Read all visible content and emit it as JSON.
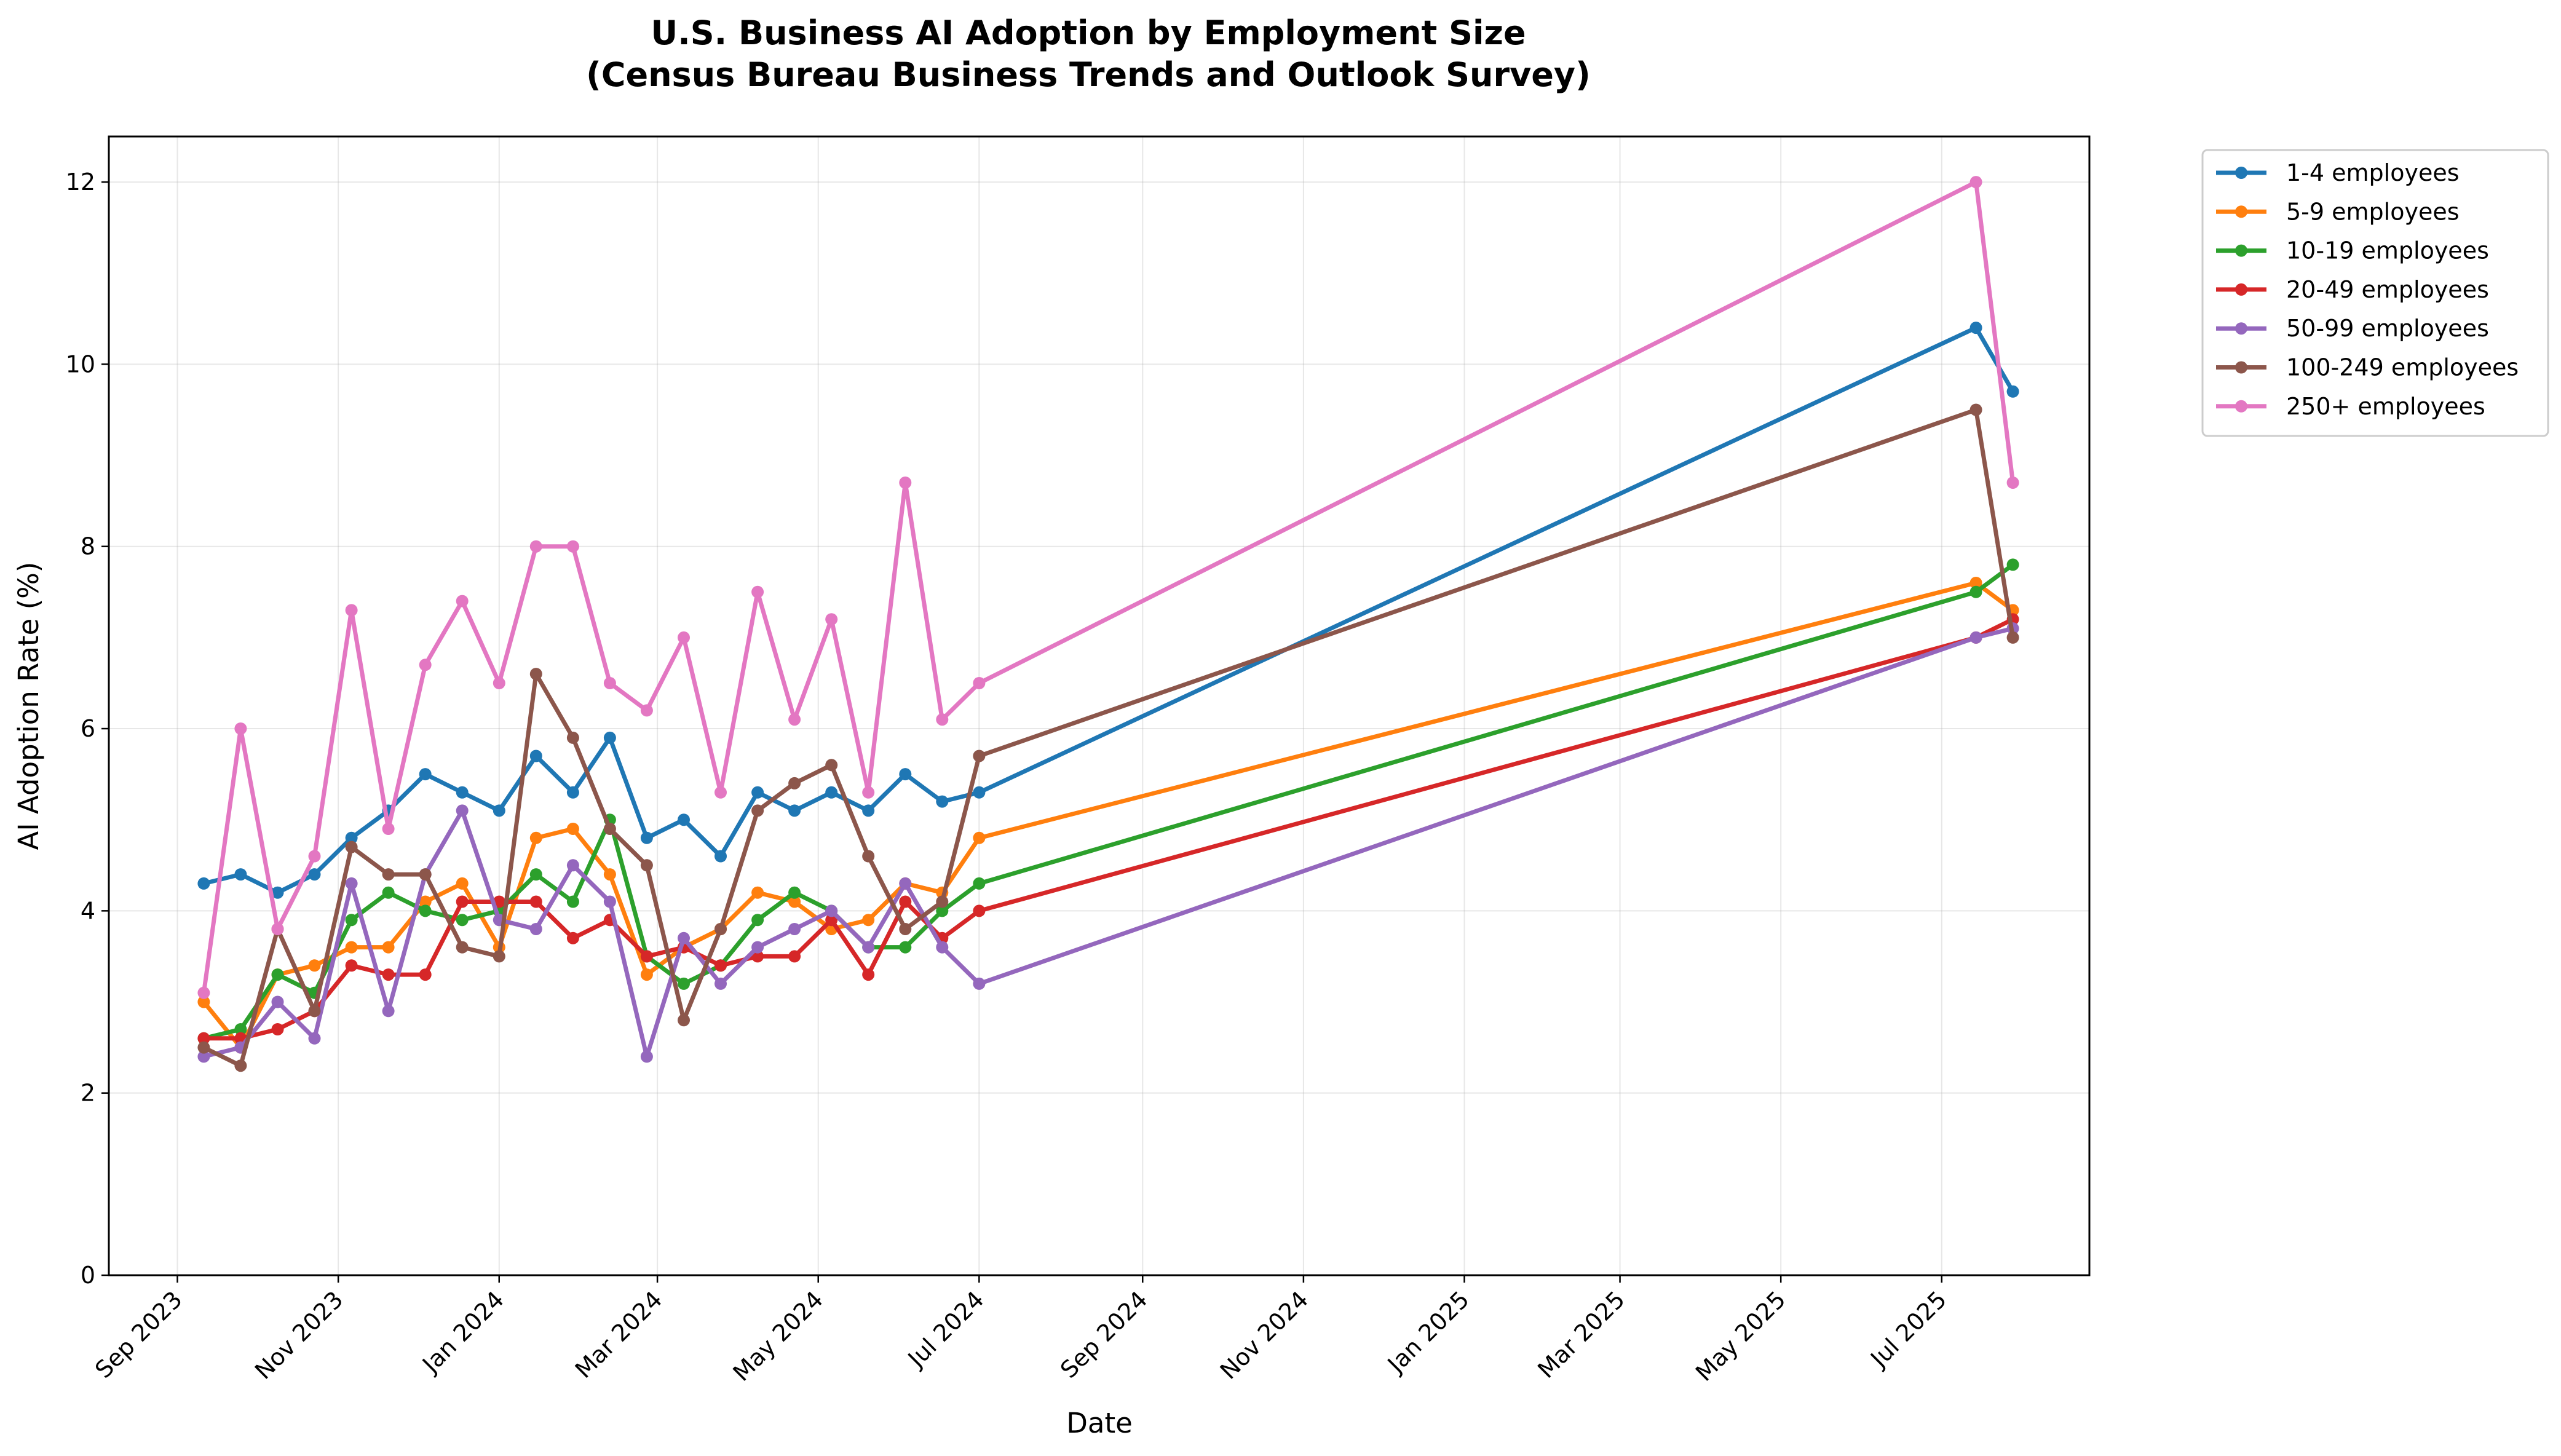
{
  "chart_data": {
    "type": "line",
    "title_line1": "U.S. Business AI Adoption by Employment Size",
    "title_line2": "(Census Bureau Business Trends and Outlook Survey)",
    "xlabel": "Date",
    "ylabel": "AI Adoption Rate (%)",
    "ylim": [
      0,
      12.5
    ],
    "yticks": [
      0,
      2,
      4,
      6,
      8,
      10,
      12
    ],
    "x_range_days": [
      -26,
      725
    ],
    "x_origin": "2023-09-01",
    "xticks": [
      {
        "label": "Sep 2023",
        "day": 0
      },
      {
        "label": "Nov 2023",
        "day": 61
      },
      {
        "label": "Jan 2024",
        "day": 122
      },
      {
        "label": "Mar 2024",
        "day": 182
      },
      {
        "label": "May 2024",
        "day": 243
      },
      {
        "label": "Jul 2024",
        "day": 304
      },
      {
        "label": "Sep 2024",
        "day": 366
      },
      {
        "label": "Nov 2024",
        "day": 427
      },
      {
        "label": "Jan 2025",
        "day": 488
      },
      {
        "label": "Mar 2025",
        "day": 547
      },
      {
        "label": "May 2025",
        "day": 608
      },
      {
        "label": "Jul 2025",
        "day": 669
      }
    ],
    "x": [
      10,
      24,
      38,
      52,
      66,
      80,
      94,
      108,
      122,
      136,
      150,
      164,
      178,
      192,
      206,
      220,
      234,
      248,
      262,
      276,
      290,
      304,
      682,
      696
    ],
    "grid": true,
    "legend_position": "outside right top",
    "series": [
      {
        "name": "1-4 employees",
        "color": "#1f77b4",
        "values": [
          4.3,
          4.4,
          4.2,
          4.4,
          4.8,
          5.1,
          5.5,
          5.3,
          5.1,
          5.7,
          5.3,
          5.9,
          4.8,
          5.0,
          4.6,
          5.3,
          5.1,
          5.3,
          5.1,
          5.5,
          5.2,
          5.3,
          10.4,
          9.7
        ]
      },
      {
        "name": "5-9 employees",
        "color": "#ff7f0e",
        "values": [
          3.0,
          2.5,
          3.3,
          3.4,
          3.6,
          3.6,
          4.1,
          4.3,
          3.6,
          4.8,
          4.9,
          4.4,
          3.3,
          3.6,
          3.8,
          4.2,
          4.1,
          3.8,
          3.9,
          4.3,
          4.2,
          4.8,
          7.6,
          7.3
        ]
      },
      {
        "name": "10-19 employees",
        "color": "#2ca02c",
        "values": [
          2.6,
          2.7,
          3.3,
          3.1,
          3.9,
          4.2,
          4.0,
          3.9,
          4.0,
          4.4,
          4.1,
          5.0,
          3.5,
          3.2,
          3.4,
          3.9,
          4.2,
          4.0,
          3.6,
          3.6,
          4.0,
          4.3,
          7.5,
          7.8
        ]
      },
      {
        "name": "20-49 employees",
        "color": "#d62728",
        "values": [
          2.6,
          2.6,
          2.7,
          2.9,
          3.4,
          3.3,
          3.3,
          4.1,
          4.1,
          4.1,
          3.7,
          3.9,
          3.5,
          3.6,
          3.4,
          3.5,
          3.5,
          3.9,
          3.3,
          4.1,
          3.7,
          4.0,
          7.0,
          7.2
        ]
      },
      {
        "name": "50-99 employees",
        "color": "#9467bd",
        "values": [
          2.4,
          2.5,
          3.0,
          2.6,
          4.3,
          2.9,
          4.4,
          5.1,
          3.9,
          3.8,
          4.5,
          4.1,
          2.4,
          3.7,
          3.2,
          3.6,
          3.8,
          4.0,
          3.6,
          4.3,
          3.6,
          3.2,
          7.0,
          7.1
        ]
      },
      {
        "name": "100-249 employees",
        "color": "#8c564b",
        "values": [
          2.5,
          2.3,
          3.8,
          2.9,
          4.7,
          4.4,
          4.4,
          3.6,
          3.5,
          6.6,
          5.9,
          4.9,
          4.5,
          2.8,
          3.8,
          5.1,
          5.4,
          5.6,
          4.6,
          3.8,
          4.1,
          5.7,
          9.5,
          7.0
        ]
      },
      {
        "name": "250+ employees",
        "color": "#e377c2",
        "values": [
          3.1,
          6.0,
          3.8,
          4.6,
          7.3,
          4.9,
          6.7,
          7.4,
          6.5,
          8.0,
          8.0,
          6.5,
          6.2,
          7.0,
          5.3,
          7.5,
          6.1,
          7.2,
          5.3,
          8.7,
          6.1,
          6.5,
          12.0,
          8.7
        ]
      }
    ]
  }
}
